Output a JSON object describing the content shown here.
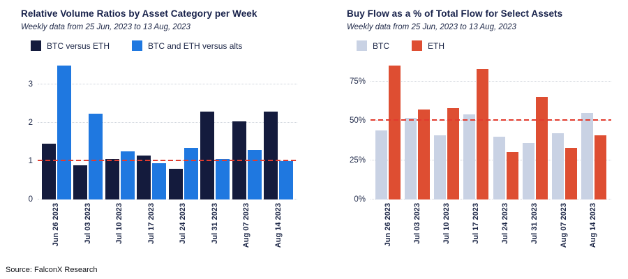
{
  "source": "Source: FalconX Research",
  "chart_data": [
    {
      "type": "bar",
      "title": "Relative Volume Ratios by Asset Category per Week",
      "subtitle": "Weekly data from 25 Jun, 2023 to 13 Aug, 2023",
      "categories": [
        "Jun 26 2023",
        "Jul 03 2023",
        "Jul 10 2023",
        "Jul 17 2023",
        "Jul 24 2023",
        "Jul 31 2023",
        "Aug 07 2023",
        "Aug 14 2023"
      ],
      "series": [
        {
          "name": "BTC versus ETH",
          "color": "#141B3D",
          "values": [
            1.45,
            0.9,
            1.05,
            1.15,
            0.8,
            2.3,
            2.05,
            2.3
          ]
        },
        {
          "name": "BTC and ETH versus alts",
          "color": "#1F78E0",
          "values": [
            3.5,
            2.25,
            1.25,
            0.95,
            1.35,
            1.05,
            1.3,
            1.0
          ]
        }
      ],
      "ylim": [
        0,
        3.7
      ],
      "yticks": [
        0,
        1,
        2,
        3
      ],
      "ytick_labels": [
        "0",
        "1",
        "2",
        "3"
      ],
      "ref_line": {
        "value": 1,
        "color": "#E23B2E",
        "style": "dashed"
      },
      "grid": true,
      "legend_position": "top"
    },
    {
      "type": "bar",
      "title": "Buy Flow as a % of Total Flow for Select Assets",
      "subtitle": "Weekly data from 25 Jun, 2023 to 13 Aug, 2023",
      "categories": [
        "Jun 26 2023",
        "Jul 03 2023",
        "Jul 10 2023",
        "Jul 17 2023",
        "Jul 24 2023",
        "Jul 31 2023",
        "Aug 07 2023",
        "Aug 14 2023"
      ],
      "series": [
        {
          "name": "BTC",
          "color": "#C9D2E4",
          "values": [
            44,
            52,
            41,
            54,
            40,
            36,
            42,
            55
          ]
        },
        {
          "name": "ETH",
          "color": "#DE4E32",
          "values": [
            85,
            57,
            58,
            83,
            30,
            65,
            33,
            41
          ]
        }
      ],
      "ylim": [
        0,
        90
      ],
      "yticks": [
        0,
        25,
        50,
        75
      ],
      "ytick_labels": [
        "0%",
        "25%",
        "50%",
        "75%"
      ],
      "ref_line": {
        "value": 50,
        "color": "#E23B2E",
        "style": "dashed"
      },
      "grid": true,
      "legend_position": "top"
    }
  ]
}
